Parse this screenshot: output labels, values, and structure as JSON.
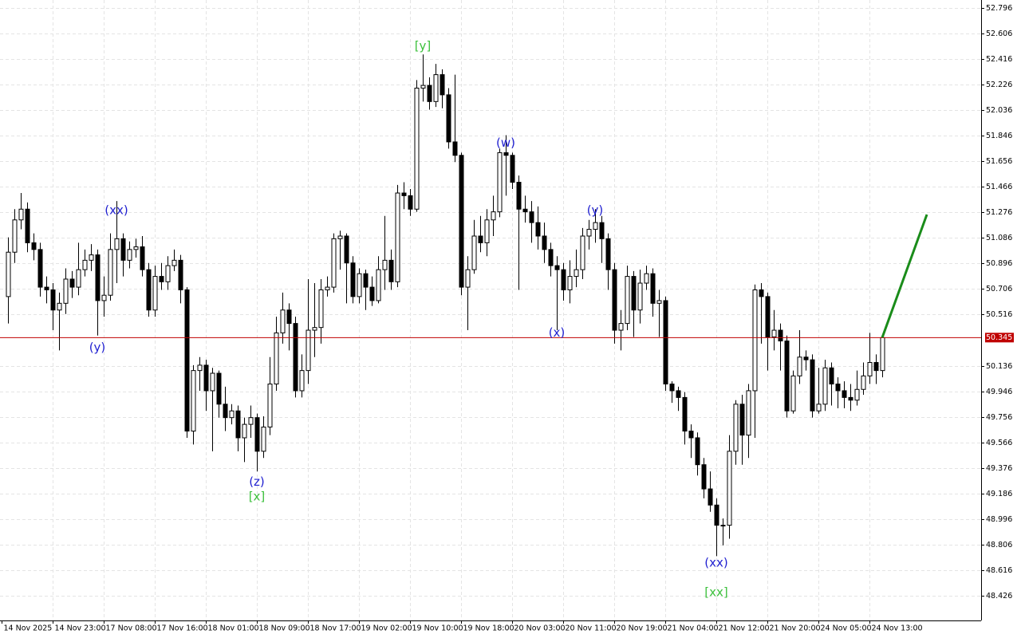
{
  "chart_data": {
    "type": "candlestick",
    "ylim": [
      48.242,
      52.855
    ],
    "yticks": [
      52.796,
      52.606,
      52.416,
      52.226,
      52.036,
      51.846,
      51.656,
      51.466,
      51.276,
      51.086,
      50.896,
      50.706,
      50.516,
      50.136,
      49.946,
      49.756,
      49.566,
      49.376,
      49.186,
      48.996,
      48.806,
      48.616,
      48.426
    ],
    "grid": true,
    "up_color": "#ffffff",
    "down_color": "#000000",
    "categories": [
      "14 Nov 2025",
      null,
      null,
      null,
      null,
      null,
      null,
      null,
      "14 Nov 23:00",
      null,
      null,
      null,
      null,
      null,
      null,
      null,
      "17 Nov 08:00",
      null,
      null,
      null,
      null,
      null,
      null,
      null,
      "17 Nov 16:00",
      null,
      null,
      null,
      null,
      null,
      null,
      null,
      "18 Nov 01:00",
      null,
      null,
      null,
      null,
      null,
      null,
      null,
      "18 Nov 09:00",
      null,
      null,
      null,
      null,
      null,
      null,
      null,
      "18 Nov 17:00",
      null,
      null,
      null,
      null,
      null,
      null,
      null,
      "19 Nov 02:00",
      null,
      null,
      null,
      null,
      null,
      null,
      null,
      "19 Nov 10:00",
      null,
      null,
      null,
      null,
      null,
      null,
      null,
      "19 Nov 18:00",
      null,
      null,
      null,
      null,
      null,
      null,
      null,
      "20 Nov 03:00",
      null,
      null,
      null,
      null,
      null,
      null,
      null,
      "20 Nov 11:00",
      null,
      null,
      null,
      null,
      null,
      null,
      null,
      "20 Nov 19:00",
      null,
      null,
      null,
      null,
      null,
      null,
      null,
      "21 Nov 04:00",
      null,
      null,
      null,
      null,
      null,
      null,
      null,
      "21 Nov 12:00",
      null,
      null,
      null,
      null,
      null,
      null,
      null,
      "21 Nov 20:00",
      null,
      null,
      null,
      null,
      null,
      null,
      null,
      "24 Nov 05:00",
      null,
      null,
      null,
      null,
      null,
      null,
      null,
      "24 Nov 13:00",
      null
    ],
    "open": [
      50.65,
      50.98,
      51.22,
      51.3,
      51.05,
      51.0,
      50.72,
      50.7,
      50.55,
      50.6,
      50.78,
      50.72,
      50.85,
      50.92,
      50.96,
      50.62,
      50.66,
      51.0,
      51.08,
      50.92,
      51.0,
      51.02,
      50.85,
      50.55,
      50.8,
      50.76,
      50.88,
      50.92,
      50.7,
      49.65,
      50.1,
      50.14,
      49.95,
      50.08,
      49.85,
      49.75,
      49.8,
      49.6,
      49.7,
      49.75,
      49.5,
      49.68,
      50.0,
      50.38,
      50.55,
      50.45,
      49.95,
      50.1,
      50.4,
      50.42,
      50.7,
      50.72,
      51.08,
      51.1,
      50.9,
      50.65,
      50.82,
      50.72,
      50.62,
      50.85,
      50.92,
      50.76,
      51.42,
      51.4,
      51.3,
      52.2,
      52.22,
      52.1,
      52.3,
      52.15,
      51.8,
      51.7,
      50.72,
      50.85,
      51.1,
      51.05,
      51.22,
      51.28,
      51.72,
      51.7,
      51.5,
      51.3,
      51.28,
      51.2,
      51.1,
      51.0,
      50.88,
      50.85,
      50.7,
      50.8,
      50.85,
      51.1,
      51.15,
      51.2,
      51.08,
      50.85,
      50.4,
      50.45,
      50.8,
      50.55,
      50.75,
      50.82,
      50.6,
      50.62,
      50.0,
      49.95,
      49.9,
      49.65,
      49.6,
      49.4,
      49.22,
      49.1,
      48.95,
      48.95,
      49.5,
      49.85,
      49.62,
      49.95,
      50.7,
      50.65,
      50.35,
      50.4,
      50.32,
      49.8,
      50.06,
      50.2,
      50.18,
      49.8,
      49.85,
      50.12,
      50.0,
      49.95,
      49.9,
      49.88,
      49.96,
      50.06,
      50.16,
      50.1
    ],
    "high": [
      51.09,
      51.3,
      51.42,
      51.35,
      51.12,
      51.05,
      50.8,
      50.75,
      50.68,
      50.86,
      50.84,
      51.05,
      51.0,
      51.04,
      51.0,
      50.8,
      51.12,
      51.36,
      51.12,
      51.06,
      51.08,
      51.1,
      50.9,
      50.88,
      50.9,
      50.95,
      51.0,
      50.96,
      50.72,
      50.14,
      50.2,
      50.18,
      50.12,
      50.1,
      49.98,
      49.85,
      49.84,
      49.75,
      49.84,
      49.78,
      49.76,
      50.2,
      50.5,
      50.68,
      50.6,
      50.5,
      50.22,
      50.78,
      50.75,
      50.78,
      50.8,
      51.12,
      51.14,
      51.12,
      50.95,
      50.86,
      50.85,
      50.8,
      50.95,
      51.25,
      51.0,
      51.48,
      51.5,
      51.45,
      52.26,
      52.45,
      52.28,
      52.38,
      52.34,
      52.2,
      52.3,
      51.72,
      50.95,
      51.22,
      51.25,
      51.3,
      51.4,
      51.75,
      51.85,
      51.72,
      51.55,
      51.4,
      51.36,
      51.32,
      51.2,
      51.05,
      50.95,
      50.9,
      50.92,
      51.0,
      51.16,
      51.22,
      51.3,
      51.25,
      51.12,
      50.9,
      50.55,
      50.88,
      50.84,
      50.85,
      50.88,
      50.86,
      50.7,
      50.65,
      50.02,
      49.98,
      49.94,
      49.7,
      49.64,
      49.45,
      49.35,
      49.15,
      49.0,
      49.62,
      49.88,
      49.92,
      50.0,
      50.74,
      50.75,
      50.68,
      50.55,
      50.45,
      50.36,
      50.1,
      50.4,
      50.25,
      50.22,
      50.12,
      50.18,
      50.16,
      50.05,
      50.02,
      50.0,
      50.1,
      50.16,
      50.38,
      50.22,
      50.36
    ],
    "low": [
      50.45,
      50.9,
      51.15,
      50.98,
      50.92,
      50.65,
      50.6,
      50.4,
      50.25,
      50.52,
      50.64,
      50.66,
      50.8,
      50.84,
      50.36,
      50.5,
      50.62,
      50.75,
      50.8,
      50.86,
      50.94,
      50.8,
      50.5,
      50.5,
      50.7,
      50.7,
      50.84,
      50.6,
      49.6,
      49.55,
      49.95,
      49.8,
      49.5,
      49.75,
      49.65,
      49.7,
      49.5,
      49.42,
      49.6,
      49.35,
      49.45,
      49.62,
      49.95,
      50.3,
      50.25,
      49.9,
      49.9,
      50.0,
      50.2,
      50.3,
      50.65,
      50.68,
      50.85,
      50.6,
      50.6,
      50.6,
      50.55,
      50.58,
      50.6,
      50.7,
      50.7,
      50.72,
      51.3,
      51.25,
      51.28,
      52.1,
      52.04,
      52.06,
      52.05,
      51.75,
      51.65,
      50.66,
      50.4,
      50.82,
      50.98,
      50.95,
      51.1,
      51.24,
      51.4,
      51.45,
      50.7,
      51.2,
      51.05,
      51.0,
      50.9,
      50.8,
      50.4,
      50.62,
      50.6,
      50.72,
      50.78,
      51.0,
      51.05,
      50.9,
      50.7,
      50.3,
      50.25,
      50.4,
      50.35,
      50.45,
      50.7,
      50.5,
      50.35,
      49.95,
      49.86,
      49.8,
      49.55,
      49.45,
      49.32,
      49.15,
      49.05,
      48.72,
      48.8,
      48.85,
      49.4,
      49.4,
      49.45,
      49.6,
      50.3,
      50.1,
      50.25,
      50.1,
      49.75,
      49.78,
      50.0,
      50.1,
      49.75,
      49.78,
      49.8,
      49.84,
      49.82,
      49.82,
      49.8,
      49.84,
      49.92,
      50.0,
      50.0,
      50.05
    ],
    "close": [
      50.98,
      51.22,
      51.3,
      51.05,
      51.0,
      50.72,
      50.7,
      50.55,
      50.6,
      50.78,
      50.72,
      50.85,
      50.92,
      50.96,
      50.62,
      50.66,
      51.0,
      51.08,
      50.92,
      51.0,
      51.02,
      50.85,
      50.55,
      50.8,
      50.76,
      50.88,
      50.92,
      50.7,
      49.65,
      50.1,
      50.14,
      49.95,
      50.08,
      49.85,
      49.75,
      49.8,
      49.6,
      49.7,
      49.75,
      49.5,
      49.68,
      50.0,
      50.38,
      50.55,
      50.45,
      49.95,
      50.1,
      50.4,
      50.42,
      50.7,
      50.72,
      51.08,
      51.1,
      50.9,
      50.65,
      50.82,
      50.72,
      50.62,
      50.85,
      50.92,
      50.76,
      51.42,
      51.4,
      51.3,
      52.2,
      52.22,
      52.1,
      52.3,
      52.15,
      51.8,
      51.7,
      50.72,
      50.85,
      51.1,
      51.05,
      51.22,
      51.28,
      51.72,
      51.7,
      51.5,
      51.3,
      51.28,
      51.2,
      51.1,
      51.0,
      50.88,
      50.85,
      50.7,
      50.8,
      50.85,
      51.1,
      51.15,
      51.2,
      51.08,
      50.85,
      50.4,
      50.45,
      50.8,
      50.55,
      50.75,
      50.82,
      50.6,
      50.62,
      50.0,
      49.95,
      49.9,
      49.65,
      49.6,
      49.4,
      49.22,
      49.1,
      48.95,
      48.95,
      49.5,
      49.85,
      49.62,
      49.95,
      50.7,
      50.65,
      50.35,
      50.4,
      50.32,
      49.8,
      50.06,
      50.2,
      50.18,
      49.8,
      49.85,
      50.12,
      50.0,
      49.95,
      49.9,
      49.88,
      49.96,
      50.06,
      50.16,
      50.1,
      50.345
    ],
    "current_price": 50.345,
    "current_price_color": "#c00000",
    "projection": {
      "color": "#1a8c1a",
      "x": [
        137,
        144
      ],
      "y": [
        50.345,
        51.26
      ]
    },
    "annotations": [
      {
        "text": "(y)",
        "index": 14,
        "price": 50.27,
        "color": "#1f1fd0"
      },
      {
        "text": "(xx)",
        "index": 17,
        "price": 51.29,
        "color": "#1f1fd0"
      },
      {
        "text": "(z)",
        "index": 39,
        "price": 49.27,
        "color": "#1f1fd0"
      },
      {
        "text": "[x]",
        "index": 39,
        "price": 49.16,
        "color": "#3cc03c"
      },
      {
        "text": "[y]",
        "index": 65,
        "price": 52.51,
        "color": "#3cc03c"
      },
      {
        "text": "(w)",
        "index": 78,
        "price": 51.79,
        "color": "#1f1fd0"
      },
      {
        "text": "(x)",
        "index": 86,
        "price": 50.38,
        "color": "#1f1fd0"
      },
      {
        "text": "(y)",
        "index": 92,
        "price": 51.29,
        "color": "#1f1fd0"
      },
      {
        "text": "(xx)",
        "index": 111,
        "price": 48.67,
        "color": "#1f1fd0"
      },
      {
        "text": "[xx]",
        "index": 111,
        "price": 48.45,
        "color": "#3cc03c"
      }
    ]
  }
}
